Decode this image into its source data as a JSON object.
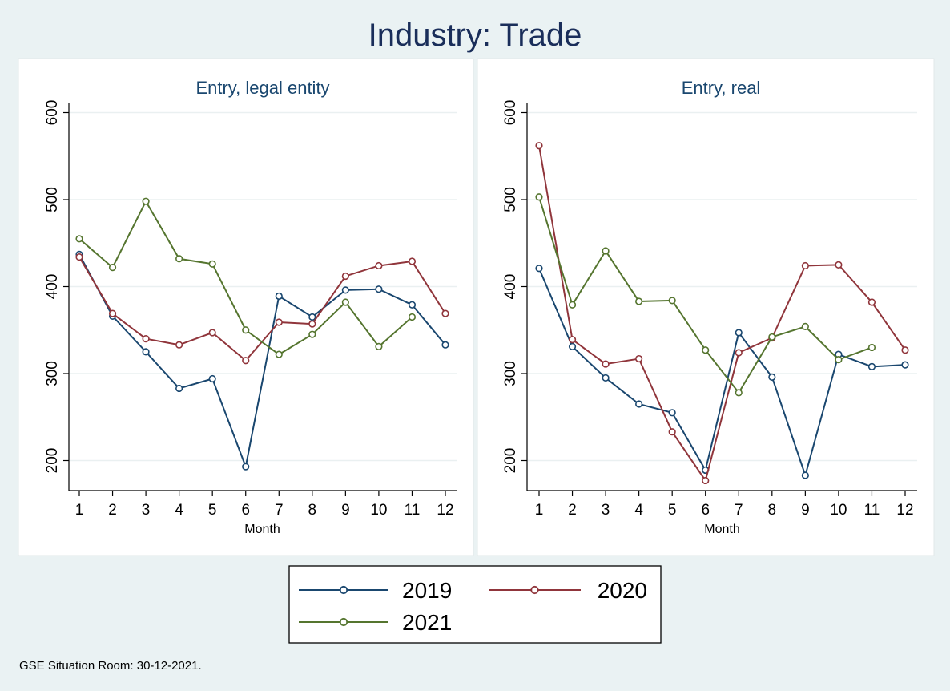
{
  "title": "Industry: Trade",
  "note": "GSE Situation Room: 30-12-2021.",
  "chart_data": [
    {
      "type": "line",
      "title": "Entry, legal entity",
      "xlabel": "Month",
      "ylabel": "",
      "x": [
        1,
        2,
        3,
        4,
        5,
        6,
        7,
        8,
        9,
        10,
        11,
        12
      ],
      "xticks": [
        "1",
        "2",
        "3",
        "4",
        "5",
        "6",
        "7",
        "8",
        "9",
        "10",
        "11",
        "12"
      ],
      "yticks": [
        "200",
        "300",
        "400",
        "500",
        "600"
      ],
      "ylim": [
        180,
        612
      ],
      "series": [
        {
          "name": "2019",
          "color": "#1a476f",
          "values": [
            437,
            366,
            325,
            283,
            294,
            193,
            389,
            365,
            396,
            397,
            379,
            333
          ]
        },
        {
          "name": "2020",
          "color": "#90353b",
          "values": [
            434,
            369,
            340,
            333,
            347,
            315,
            359,
            357,
            412,
            424,
            429,
            369
          ]
        },
        {
          "name": "2021",
          "color": "#55752f",
          "values": [
            455,
            422,
            498,
            432,
            426,
            350,
            322,
            345,
            382,
            331,
            365,
            null
          ]
        }
      ]
    },
    {
      "type": "line",
      "title": "Entry, real",
      "xlabel": "Month",
      "ylabel": "",
      "x": [
        1,
        2,
        3,
        4,
        5,
        6,
        7,
        8,
        9,
        10,
        11,
        12
      ],
      "xticks": [
        "1",
        "2",
        "3",
        "4",
        "5",
        "6",
        "7",
        "8",
        "9",
        "10",
        "11",
        "12"
      ],
      "yticks": [
        "200",
        "300",
        "400",
        "500",
        "600"
      ],
      "ylim": [
        180,
        612
      ],
      "series": [
        {
          "name": "2019",
          "color": "#1a476f",
          "values": [
            421,
            331,
            295,
            265,
            255,
            189,
            347,
            296,
            183,
            322,
            308,
            310
          ]
        },
        {
          "name": "2020",
          "color": "#90353b",
          "values": [
            562,
            339,
            311,
            317,
            233,
            177,
            324,
            341,
            424,
            425,
            382,
            327
          ]
        },
        {
          "name": "2021",
          "color": "#55752f",
          "values": [
            503,
            379,
            441,
            383,
            384,
            327,
            278,
            342,
            354,
            316,
            330,
            null
          ]
        }
      ]
    }
  ],
  "legend": [
    {
      "label": "2019",
      "color": "#1a476f"
    },
    {
      "label": "2020",
      "color": "#90353b"
    },
    {
      "label": "2021",
      "color": "#55752f"
    }
  ]
}
